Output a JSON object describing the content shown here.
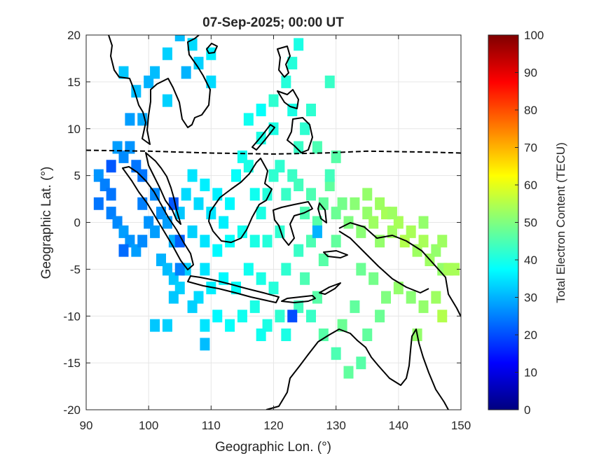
{
  "chart_data": {
    "type": "heatmap",
    "title": "07-Sep-2025; 00:00 UT",
    "xlabel": "Geographic Lon. (°)",
    "ylabel": "Geographic Lat. (°)",
    "xlim": [
      90,
      150
    ],
    "ylim": [
      -20,
      20
    ],
    "xticks": [
      90,
      100,
      110,
      120,
      130,
      140,
      150
    ],
    "yticks": [
      -20,
      -15,
      -10,
      -5,
      0,
      5,
      10,
      15,
      20
    ],
    "grid": true,
    "colorbar": {
      "label": "Total Electron Content (TECU)",
      "range": [
        0,
        100
      ],
      "ticks": [
        0,
        10,
        20,
        30,
        40,
        50,
        60,
        70,
        80,
        90,
        100
      ],
      "colormap": "jet"
    },
    "magnetic_equator": [
      [
        90,
        7.7
      ],
      [
        100,
        7.6
      ],
      [
        110,
        7.4
      ],
      [
        120,
        7.3
      ],
      [
        128,
        7.4
      ],
      [
        135,
        7.6
      ],
      [
        145,
        7.5
      ],
      [
        150,
        7.4
      ]
    ],
    "cells": [
      [
        95,
        8,
        28
      ],
      [
        96,
        7,
        26
      ],
      [
        97,
        8,
        27
      ],
      [
        98,
        6,
        24
      ],
      [
        99,
        5,
        24
      ],
      [
        92,
        5,
        27
      ],
      [
        93,
        4,
        25
      ],
      [
        94,
        3,
        24
      ],
      [
        94,
        1,
        25
      ],
      [
        95,
        0,
        26
      ],
      [
        96,
        -1,
        28
      ],
      [
        97,
        -2,
        27
      ],
      [
        98,
        -3,
        28
      ],
      [
        99,
        -2,
        26
      ],
      [
        99,
        2,
        25
      ],
      [
        100,
        0,
        27
      ],
      [
        101,
        -1,
        28
      ],
      [
        101,
        3,
        26
      ],
      [
        102,
        1,
        27
      ],
      [
        103,
        0,
        28
      ],
      [
        102,
        -4,
        30
      ],
      [
        103,
        -5,
        31
      ],
      [
        104,
        -6,
        32
      ],
      [
        105,
        -7,
        33
      ],
      [
        104,
        -2,
        30
      ],
      [
        105,
        1,
        32
      ],
      [
        106,
        3,
        34
      ],
      [
        107,
        5,
        35
      ],
      [
        108,
        2,
        34
      ],
      [
        109,
        4,
        36
      ],
      [
        110,
        1,
        35
      ],
      [
        111,
        3,
        36
      ],
      [
        112,
        0,
        36
      ],
      [
        113,
        2,
        37
      ],
      [
        114,
        5,
        38
      ],
      [
        115,
        7,
        39
      ],
      [
        116,
        6,
        40
      ],
      [
        117,
        3,
        39
      ],
      [
        118,
        1,
        40
      ],
      [
        119,
        3,
        41
      ],
      [
        120,
        5,
        42
      ],
      [
        121,
        6,
        42
      ],
      [
        122,
        3,
        43
      ],
      [
        123,
        5,
        43
      ],
      [
        124,
        4,
        44
      ],
      [
        125,
        1,
        45
      ],
      [
        126,
        3,
        45
      ],
      [
        127,
        0,
        46
      ],
      [
        128,
        2,
        47
      ],
      [
        129,
        4,
        47
      ],
      [
        130,
        1,
        48
      ],
      [
        131,
        2,
        49
      ],
      [
        132,
        0,
        50
      ],
      [
        133,
        2,
        51
      ],
      [
        134,
        -1,
        51
      ],
      [
        135,
        1,
        52
      ],
      [
        136,
        0,
        53
      ],
      [
        137,
        -2,
        52
      ],
      [
        138,
        1,
        54
      ],
      [
        139,
        -1,
        53
      ],
      [
        140,
        0,
        54
      ],
      [
        141,
        -2,
        55
      ],
      [
        142,
        -1,
        54
      ],
      [
        143,
        -3,
        53
      ],
      [
        144,
        -2,
        54
      ],
      [
        145,
        -4,
        53
      ],
      [
        146,
        -3,
        52
      ],
      [
        147,
        -5,
        52
      ],
      [
        148,
        -5,
        54
      ],
      [
        142,
        -8,
        51
      ],
      [
        140,
        -7,
        52
      ],
      [
        138,
        -8,
        50
      ],
      [
        136,
        -6,
        49
      ],
      [
        134,
        -5,
        48
      ],
      [
        133,
        -9,
        47
      ],
      [
        131,
        -11,
        48
      ],
      [
        128,
        -12,
        46
      ],
      [
        130,
        -14,
        45
      ],
      [
        132,
        -16,
        47
      ],
      [
        134,
        -15,
        46
      ],
      [
        127,
        -8,
        46
      ],
      [
        125,
        -6,
        45
      ],
      [
        124,
        -9,
        44
      ],
      [
        121,
        -10,
        42
      ],
      [
        119,
        -11,
        40
      ],
      [
        117,
        -9,
        40
      ],
      [
        115,
        -10,
        39
      ],
      [
        113,
        -11,
        38
      ],
      [
        111,
        -10,
        37
      ],
      [
        109,
        -11,
        35
      ],
      [
        108,
        -8,
        34
      ],
      [
        107,
        -9,
        33
      ],
      [
        106,
        -5,
        33
      ],
      [
        109,
        -5,
        35
      ],
      [
        110,
        -7,
        36
      ],
      [
        112,
        -6,
        37
      ],
      [
        114,
        -7,
        38
      ],
      [
        116,
        -5,
        39
      ],
      [
        118,
        -6,
        40
      ],
      [
        120,
        -7,
        41
      ],
      [
        122,
        -5,
        42
      ],
      [
        124,
        -3,
        43
      ],
      [
        126,
        -2,
        45
      ],
      [
        128,
        -4,
        46
      ],
      [
        130,
        -2,
        47
      ],
      [
        121,
        -1,
        42
      ],
      [
        119,
        -2,
        41
      ],
      [
        117,
        -2,
        40
      ],
      [
        115,
        -1,
        39
      ],
      [
        113,
        -2,
        38
      ],
      [
        111,
        -3,
        37
      ],
      [
        109,
        -2,
        35
      ],
      [
        107,
        -1,
        33
      ],
      [
        103,
        -11,
        33
      ],
      [
        101,
        -11,
        32
      ],
      [
        104,
        -8,
        32
      ],
      [
        109,
        -13,
        31
      ],
      [
        100,
        15,
        30
      ],
      [
        96,
        16,
        32
      ],
      [
        98,
        14,
        31
      ],
      [
        97,
        11,
        28
      ],
      [
        99,
        11,
        29
      ],
      [
        103,
        13,
        33
      ],
      [
        106,
        16,
        30
      ],
      [
        108,
        17,
        33
      ],
      [
        105,
        20,
        31
      ],
      [
        107,
        19,
        34
      ],
      [
        110,
        15,
        34
      ],
      [
        103,
        18,
        33
      ],
      [
        101,
        16,
        31
      ],
      [
        110,
        18,
        36
      ],
      [
        116,
        11,
        39
      ],
      [
        118,
        12,
        38
      ],
      [
        120,
        13,
        42
      ],
      [
        122,
        15,
        41
      ],
      [
        123,
        17,
        41
      ],
      [
        124,
        19,
        40
      ],
      [
        123,
        12,
        40
      ],
      [
        125,
        10,
        42
      ],
      [
        126,
        12,
        42
      ],
      [
        124,
        8,
        43
      ],
      [
        120,
        10,
        40
      ],
      [
        118,
        9,
        40
      ],
      [
        129,
        15,
        43
      ],
      [
        127,
        8,
        45
      ],
      [
        129,
        5,
        44
      ],
      [
        130,
        7,
        46
      ],
      [
        135,
        3,
        52
      ],
      [
        137,
        2,
        53
      ],
      [
        139,
        1,
        53
      ],
      [
        144,
        0,
        52
      ],
      [
        147,
        -2,
        53
      ],
      [
        149,
        -5,
        54
      ],
      [
        146,
        -8,
        53
      ],
      [
        144,
        -9,
        52
      ],
      [
        147,
        -10,
        55
      ],
      [
        143,
        -12,
        52
      ],
      [
        135,
        -12,
        47
      ],
      [
        137,
        -10,
        48
      ],
      [
        126,
        -10,
        43
      ],
      [
        122,
        -12,
        40
      ],
      [
        118,
        -12,
        39
      ],
      [
        123,
        -10,
        20
      ],
      [
        105,
        -2,
        22
      ],
      [
        104,
        2,
        21
      ],
      [
        96,
        -3,
        23
      ],
      [
        94,
        6,
        21
      ],
      [
        92,
        2,
        24
      ],
      [
        105,
        -5,
        25
      ],
      [
        127,
        -1,
        30
      ]
    ]
  },
  "colors": {
    "axes": "#262626",
    "grid": "#e6e6e6",
    "coastline": "#000000",
    "equator": "#000000"
  }
}
